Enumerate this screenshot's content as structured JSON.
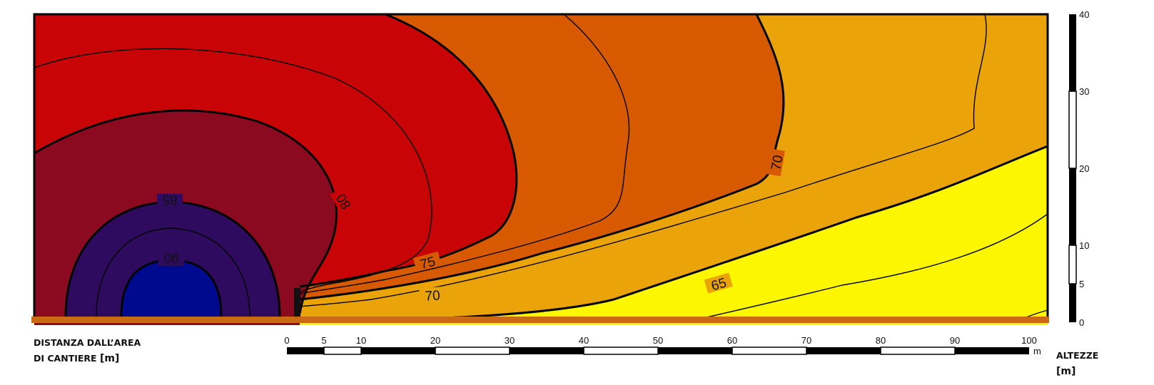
{
  "noise_map": {
    "contour_levels": [
      "90",
      "85",
      "80",
      "75",
      "70",
      "65"
    ],
    "labels": [
      {
        "text": "85"
      },
      {
        "text": "80"
      },
      {
        "text": "75"
      },
      {
        "text": "70"
      },
      {
        "text": "70"
      },
      {
        "text": "65"
      },
      {
        "text": "90"
      }
    ],
    "colors": {
      "level_90_plus": "#000a8f",
      "level_85_90": "#2e0b5f",
      "level_80_85": "#8c0a1f",
      "level_75_80": "#c90406",
      "level_70_75": "#d75900",
      "level_65_70": "#eaa40a",
      "level_below_65": "#fcf600",
      "ground": "#c96b14"
    }
  },
  "distance_axis": {
    "caption_line1": "DISTANZA DALL’AREA",
    "caption_line2": "DI CANTIERE",
    "caption_unit": "[m]",
    "ticks": [
      "0",
      "5",
      "10",
      "20",
      "30",
      "40",
      "50",
      "60",
      "70",
      "80",
      "90",
      "100"
    ],
    "unit": "m"
  },
  "height_axis": {
    "caption": "ALTEZZE",
    "caption_unit": "[m]",
    "ticks": [
      "0",
      "5",
      "10",
      "20",
      "30",
      "40"
    ]
  }
}
